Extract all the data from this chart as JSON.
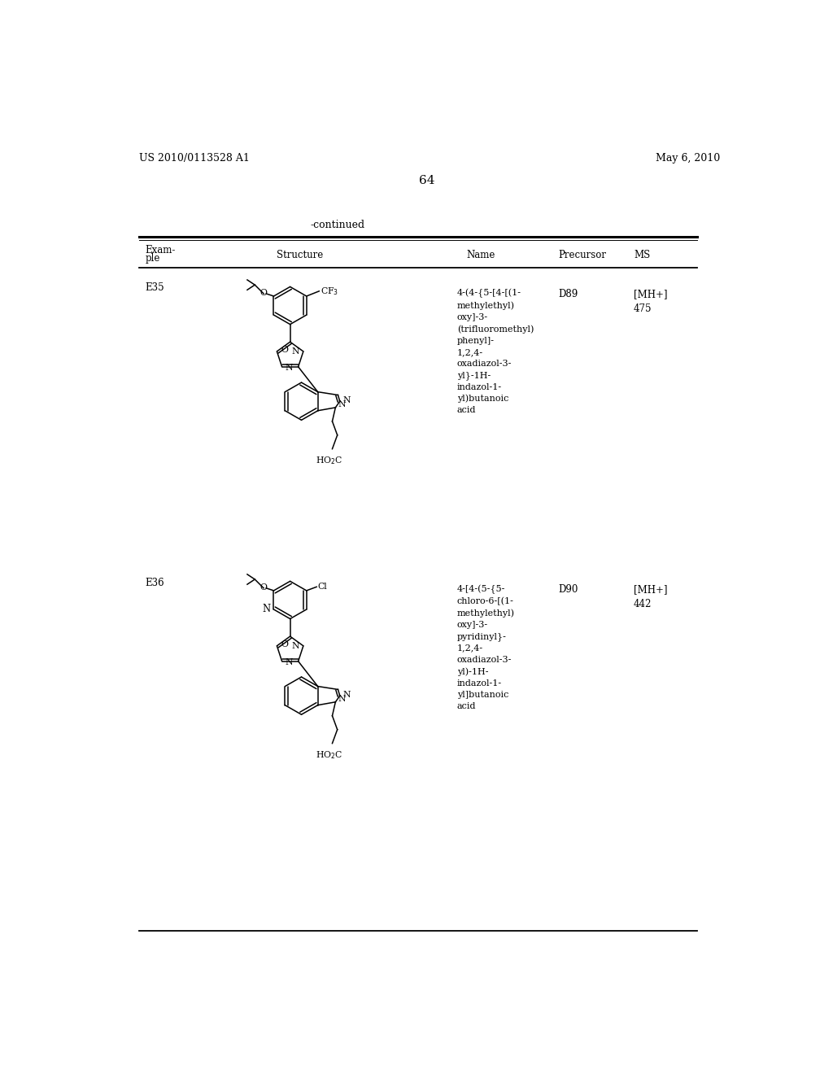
{
  "page_number": "64",
  "patent_number": "US 2010/0113528 A1",
  "patent_date": "May 6, 2010",
  "continued_label": "-continued",
  "col_headers": {
    "example": "Exam-\nple",
    "structure": "Structure",
    "name": "Name",
    "precursor": "Precursor",
    "ms": "MS"
  },
  "entries": [
    {
      "example": "E35",
      "name": "4-(4-{5-[4-[(1-\nmethylethyl)\noxy]-3-\n(trifluoromethyl)\nphenyl]-\n1,2,4-\noxadiazol-3-\nyl}-1H-\nindazol-1-\nyl)butanoic\nacid",
      "precursor": "D89",
      "ms": "[MH+]\n475"
    },
    {
      "example": "E36",
      "name": "4-[4-(5-{5-\nchloro-6-[(1-\nmethylethyl)\noxy]-3-\npyridinyl}-\n1,2,4-\noxadiazol-3-\nyl)-1H-\nindazol-1-\nyl]butanoic\nacid",
      "precursor": "D90",
      "ms": "[MH+]\n442"
    }
  ],
  "background_color": "#ffffff",
  "text_color": "#000000"
}
